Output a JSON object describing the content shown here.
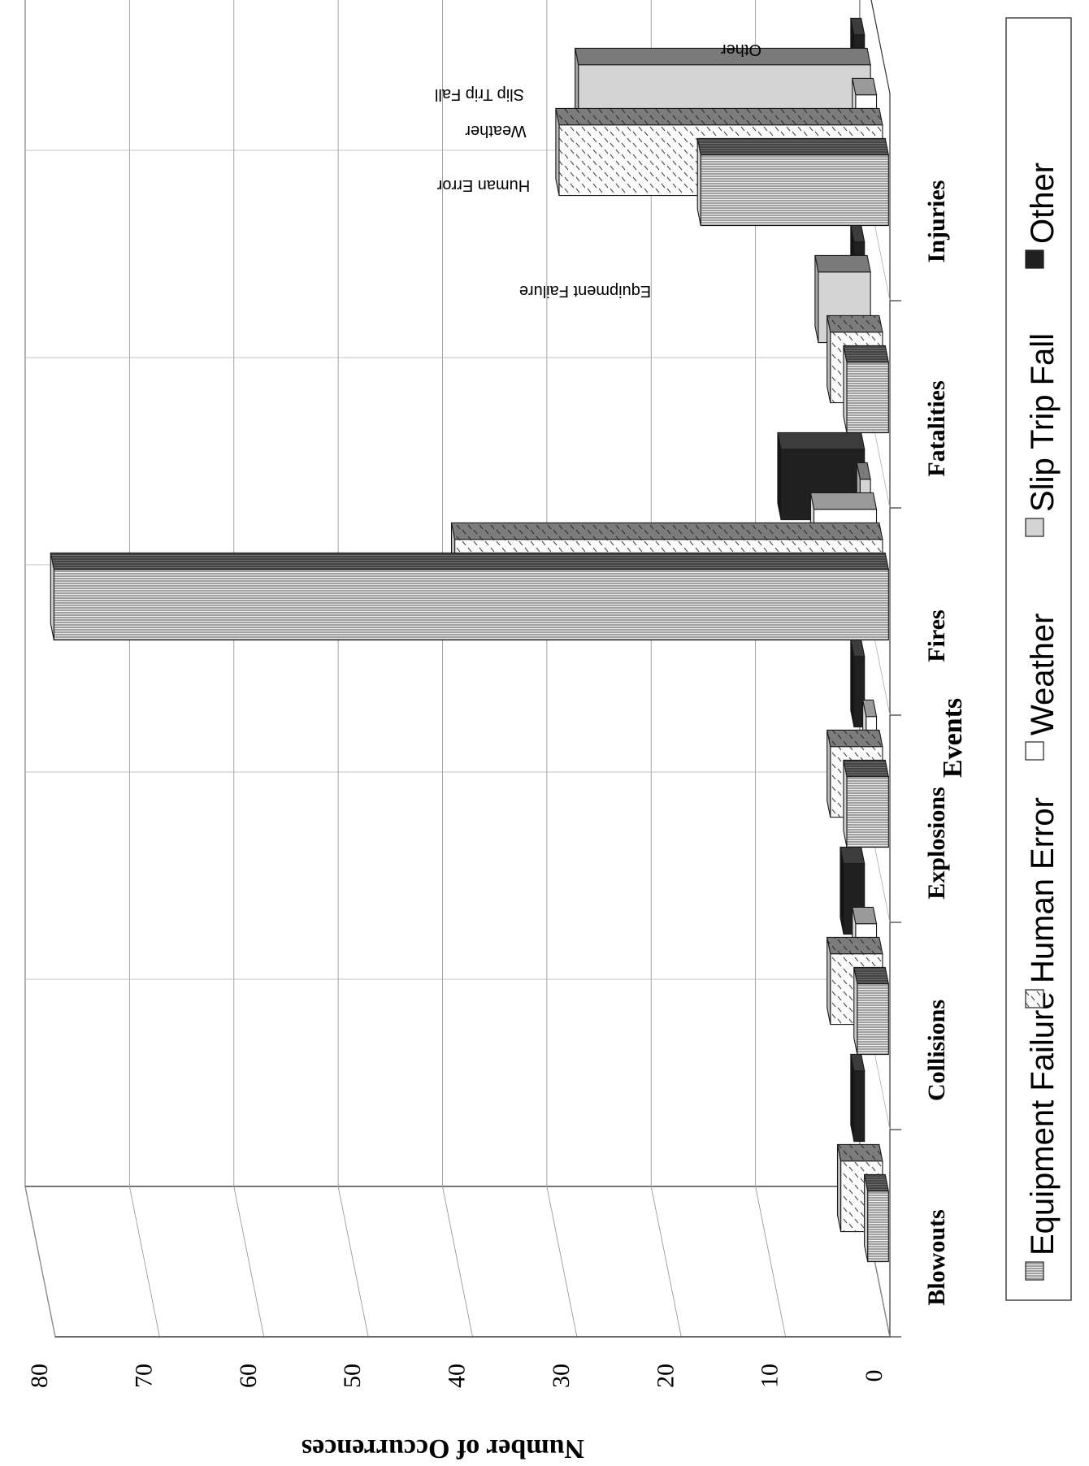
{
  "chart_data": {
    "type": "bar",
    "variant": "3d-clustered-column, rotated 90 degrees",
    "title": "",
    "xlabel": "Events",
    "ylabel": "Number of Occurrences",
    "ylim": [
      0,
      80
    ],
    "yticks": [
      0,
      10,
      20,
      30,
      40,
      50,
      60,
      70,
      80
    ],
    "grid": true,
    "legend_position": "bottom",
    "categories": [
      "Blowouts",
      "Collisions",
      "Explosions",
      "Fires",
      "Fatalities",
      "Injuries"
    ],
    "depth_axis_labels": [
      "Equipment Failure",
      "Human Error",
      "Weather",
      "Slip Trip Fall",
      "Other"
    ],
    "series": [
      {
        "name": "Equipment Failure",
        "color": "#dcdcdc",
        "pattern": "horizontal-lines",
        "values": [
          2,
          3,
          4,
          80,
          4,
          18
        ]
      },
      {
        "name": "Human Error",
        "color": "#f2f2f2",
        "pattern": "dashes",
        "values": [
          4,
          5,
          5,
          41,
          5,
          31
        ]
      },
      {
        "name": "Weather",
        "color": "#ffffff",
        "pattern": "none",
        "values": [
          0,
          2,
          1,
          6,
          0,
          2
        ]
      },
      {
        "name": "Slip Trip Fall",
        "color": "#c8c8c8",
        "pattern": "none",
        "values": [
          0,
          0,
          0,
          1,
          5,
          28
        ]
      },
      {
        "name": "Other",
        "color": "#1e1e1e",
        "pattern": "none",
        "values": [
          1,
          2,
          1,
          8,
          1,
          1
        ]
      }
    ]
  }
}
